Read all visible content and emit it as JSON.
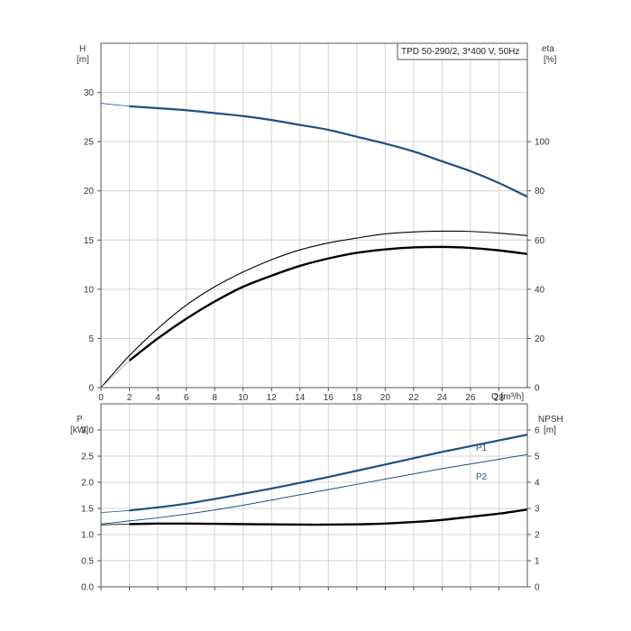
{
  "chart_data": [
    {
      "type": "line",
      "title": "TPD 50-290/2, 3*400 V, 50Hz",
      "xlabel": "Q [m³/h]",
      "ylabel": "H",
      "ylabel_unit": "[m]",
      "y2label": "eta",
      "y2label_unit": "[%]",
      "xlim": [
        0,
        30
      ],
      "ylim": [
        0,
        35
      ],
      "y2lim": [
        0,
        140
      ],
      "x_ticks": [
        0,
        2,
        4,
        6,
        8,
        10,
        12,
        14,
        16,
        18,
        20,
        22,
        24,
        26,
        28
      ],
      "y_ticks": [
        0,
        5,
        10,
        15,
        20,
        25,
        30
      ],
      "y2_ticks": [
        0,
        20,
        40,
        60,
        80,
        100
      ],
      "grid": true,
      "colors": {
        "head": "#1f4e85",
        "eta": "#000000",
        "eta_thin": "#000000"
      },
      "series": [
        {
          "axis": "left",
          "x": [
            0,
            2,
            4,
            6,
            8,
            10,
            12,
            14,
            16,
            18,
            20,
            22,
            24,
            26,
            28,
            30
          ],
          "values": [
            28.9,
            28.6,
            28.4,
            28.2,
            27.9,
            27.6,
            27.2,
            26.7,
            26.2,
            25.5,
            24.8,
            24.0,
            23.0,
            22.0,
            20.8,
            19.4
          ]
        },
        {
          "axis": "right",
          "x": [
            0,
            2,
            4,
            6,
            8,
            10,
            12,
            14,
            16,
            18,
            20,
            22,
            24,
            26,
            28,
            30
          ],
          "values": [
            0,
            13,
            24,
            33.5,
            41,
            47,
            52,
            56,
            58.8,
            60.8,
            62.5,
            63.3,
            63.6,
            63.5,
            62.8,
            61.8
          ]
        },
        {
          "axis": "right",
          "x": [
            2,
            4,
            6,
            8,
            10,
            12,
            14,
            16,
            18,
            20,
            22,
            24,
            26,
            28,
            30
          ],
          "values": [
            11,
            20,
            28,
            35,
            41,
            45.5,
            49.5,
            52.5,
            54.8,
            56.2,
            57,
            57.2,
            56.8,
            55.8,
            54.3
          ]
        }
      ]
    },
    {
      "type": "line",
      "xlabel": "",
      "ylabel": "P",
      "ylabel_unit": "[kW]",
      "y2label": "NPSH",
      "y2label_unit": "[m]",
      "xlim": [
        0,
        30
      ],
      "ylim": [
        0,
        3.5
      ],
      "y2lim": [
        0,
        7
      ],
      "y_ticks": [
        0.0,
        0.5,
        1.0,
        1.5,
        2.0,
        2.5,
        3.0
      ],
      "y_tick_labels": [
        "0.0",
        "0.5",
        "1.0",
        "1.5",
        "2.0",
        "2.5",
        "3.0"
      ],
      "y2_ticks": [
        0,
        1,
        2,
        3,
        4,
        5,
        6
      ],
      "grid": true,
      "colors": {
        "p1": "#1f4e85",
        "p2": "#1f4e85",
        "npsh": "#000000"
      },
      "series": [
        {
          "name": "P1",
          "axis": "left",
          "x": [
            0,
            2,
            4,
            6,
            8,
            10,
            12,
            14,
            16,
            18,
            20,
            22,
            24,
            26,
            28,
            30
          ],
          "values": [
            1.42,
            1.46,
            1.52,
            1.59,
            1.68,
            1.78,
            1.88,
            1.99,
            2.1,
            2.22,
            2.34,
            2.46,
            2.58,
            2.69,
            2.8,
            2.91
          ]
        },
        {
          "name": "P2",
          "axis": "left",
          "x": [
            0,
            2,
            4,
            6,
            8,
            10,
            12,
            14,
            16,
            18,
            20,
            22,
            24,
            26,
            28,
            30
          ],
          "values": [
            1.2,
            1.26,
            1.32,
            1.39,
            1.47,
            1.56,
            1.66,
            1.76,
            1.86,
            1.96,
            2.06,
            2.16,
            2.26,
            2.35,
            2.44,
            2.53
          ]
        },
        {
          "axis": "right",
          "x": [
            0,
            2,
            4,
            6,
            8,
            10,
            12,
            14,
            16,
            18,
            20,
            22,
            24,
            26,
            28,
            30
          ],
          "values": [
            2.37,
            2.4,
            2.42,
            2.42,
            2.41,
            2.4,
            2.39,
            2.38,
            2.38,
            2.39,
            2.42,
            2.48,
            2.56,
            2.68,
            2.8,
            2.96
          ]
        }
      ]
    }
  ]
}
